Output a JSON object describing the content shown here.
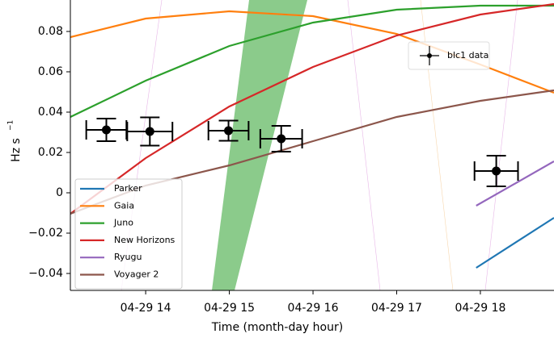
{
  "chart_data": {
    "type": "line",
    "x_label": "Time (month-day hour)",
    "y_label": "Hz s",
    "y_label_exponent": "−1",
    "xlim": [
      13.1,
      18.88
    ],
    "xticks": [
      {
        "value": 14,
        "label": "04-29 14"
      },
      {
        "value": 15,
        "label": "04-29 15"
      },
      {
        "value": 16,
        "label": "04-29 16"
      },
      {
        "value": 17,
        "label": "04-29 17"
      },
      {
        "value": 18,
        "label": "04-29 18"
      }
    ],
    "ylim": [
      -0.0484,
      0.0956
    ],
    "yticks": [
      {
        "value": -0.04,
        "label": "−0.04"
      },
      {
        "value": -0.02,
        "label": "−0.02"
      },
      0,
      0.02,
      0.04,
      0.06,
      0.08
    ],
    "legend": "lower left",
    "series": [
      {
        "name": "Parker",
        "color": "#1f77b4",
        "x": [
          17.95,
          18.88
        ],
        "values": [
          -0.0372,
          -0.0124
        ]
      },
      {
        "name": "Gaia",
        "color": "#ff7f0e",
        "x": [
          13.1,
          14,
          15,
          16,
          17,
          18,
          18.88
        ],
        "values": [
          0.0772,
          0.0864,
          0.09,
          0.0876,
          0.0788,
          0.0636,
          0.0496
        ]
      },
      {
        "name": "Juno",
        "color": "#2ca02c",
        "x": [
          13.1,
          14,
          15,
          16,
          17,
          18,
          18.88
        ],
        "values": [
          0.0376,
          0.0556,
          0.0728,
          0.0844,
          0.0908,
          0.0928,
          0.0928
        ]
      },
      {
        "name": "New Horizons",
        "color": "#d62728",
        "x": [
          13.1,
          14,
          15,
          16,
          17,
          18,
          18.88
        ],
        "values": [
          -0.0104,
          0.0172,
          0.0428,
          0.0624,
          0.078,
          0.0884,
          0.0936
        ]
      },
      {
        "name": "Ryugu",
        "color": "#9467bd",
        "x": [
          17.95,
          18.88
        ],
        "values": [
          -0.0064,
          0.0156
        ]
      },
      {
        "name": "Voyager 2",
        "color": "#8c564b",
        "x": [
          13.1,
          14,
          15,
          16,
          17,
          18,
          18.88
        ],
        "values": [
          -0.0104,
          0.0036,
          0.0136,
          0.0256,
          0.0376,
          0.0456,
          0.0508
        ]
      }
    ],
    "points": {
      "name": "blc1 data",
      "color": "#000000",
      "x": [
        13.53,
        14.05,
        14.99,
        15.62,
        18.19
      ],
      "values": [
        0.0312,
        0.0304,
        0.0308,
        0.0268,
        0.0108
      ],
      "xerr": [
        0.24,
        0.27,
        0.24,
        0.25,
        0.26
      ],
      "yerr": [
        0.0056,
        0.007,
        0.005,
        0.0064,
        0.0076
      ]
    }
  }
}
